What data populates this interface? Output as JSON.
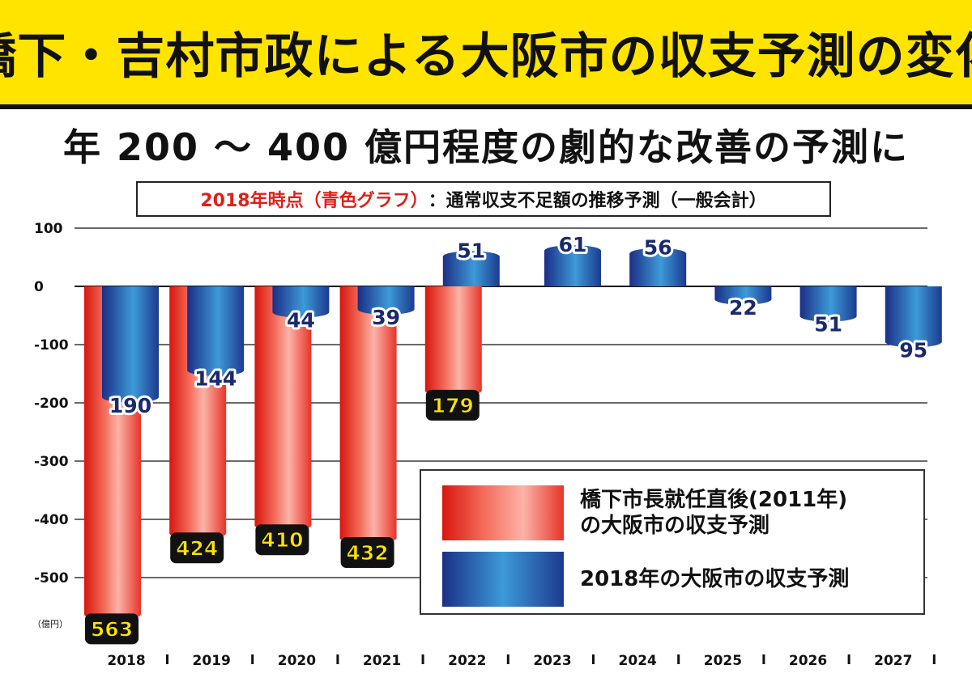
{
  "header": {
    "title": "橋下・吉村市政による大阪市の収支予測の変化",
    "subtitle": "年 200 ～ 400 億円程度の劇的な改善の予測に",
    "caption_red": "2018年時点（青色グラフ）",
    "caption_black": "：通常収支不足額の推移予測（一般会計）"
  },
  "colors": {
    "banner": "#ffe400",
    "red_series": "#e83428",
    "blue_series": "#2a5fb0",
    "label_box": "#111111",
    "label_yellow": "#ffe400"
  },
  "chart_data": {
    "type": "bar",
    "unit": "（億円）",
    "categories": [
      "2018",
      "2019",
      "2020",
      "2021",
      "2022",
      "2023",
      "2024",
      "2025",
      "2026",
      "2027"
    ],
    "series": [
      {
        "name": "橋下市長就任直後(2011年)の大阪市の収支予測",
        "color": "red",
        "values": [
          -563,
          -424,
          -410,
          -432,
          -179,
          null,
          null,
          null,
          null,
          null
        ],
        "labels": [
          "563",
          "424",
          "410",
          "432",
          "179",
          null,
          null,
          null,
          null,
          null
        ]
      },
      {
        "name": "2018年の大阪市の収支予測",
        "color": "blue",
        "values": [
          -190,
          -144,
          -44,
          -39,
          51,
          61,
          56,
          -22,
          -51,
          -95
        ],
        "labels": [
          "190",
          "144",
          "44",
          "39",
          "51",
          "61",
          "56",
          "22",
          "51",
          "95"
        ]
      }
    ],
    "yticks": [
      100,
      0,
      -100,
      -200,
      -300,
      -400,
      -500
    ],
    "ytick_labels": [
      "100",
      "0",
      "-100",
      "-200",
      "-300",
      "-400",
      "-500"
    ],
    "ylim": [
      -600,
      100
    ],
    "grid": true,
    "legend_position": "bottom-right"
  },
  "legend": {
    "red_label_line1": "橋下市長就任直後(2011年)",
    "red_label_line2": "の大阪市の収支予測",
    "blue_label": "2018年の大阪市の収支予測"
  }
}
